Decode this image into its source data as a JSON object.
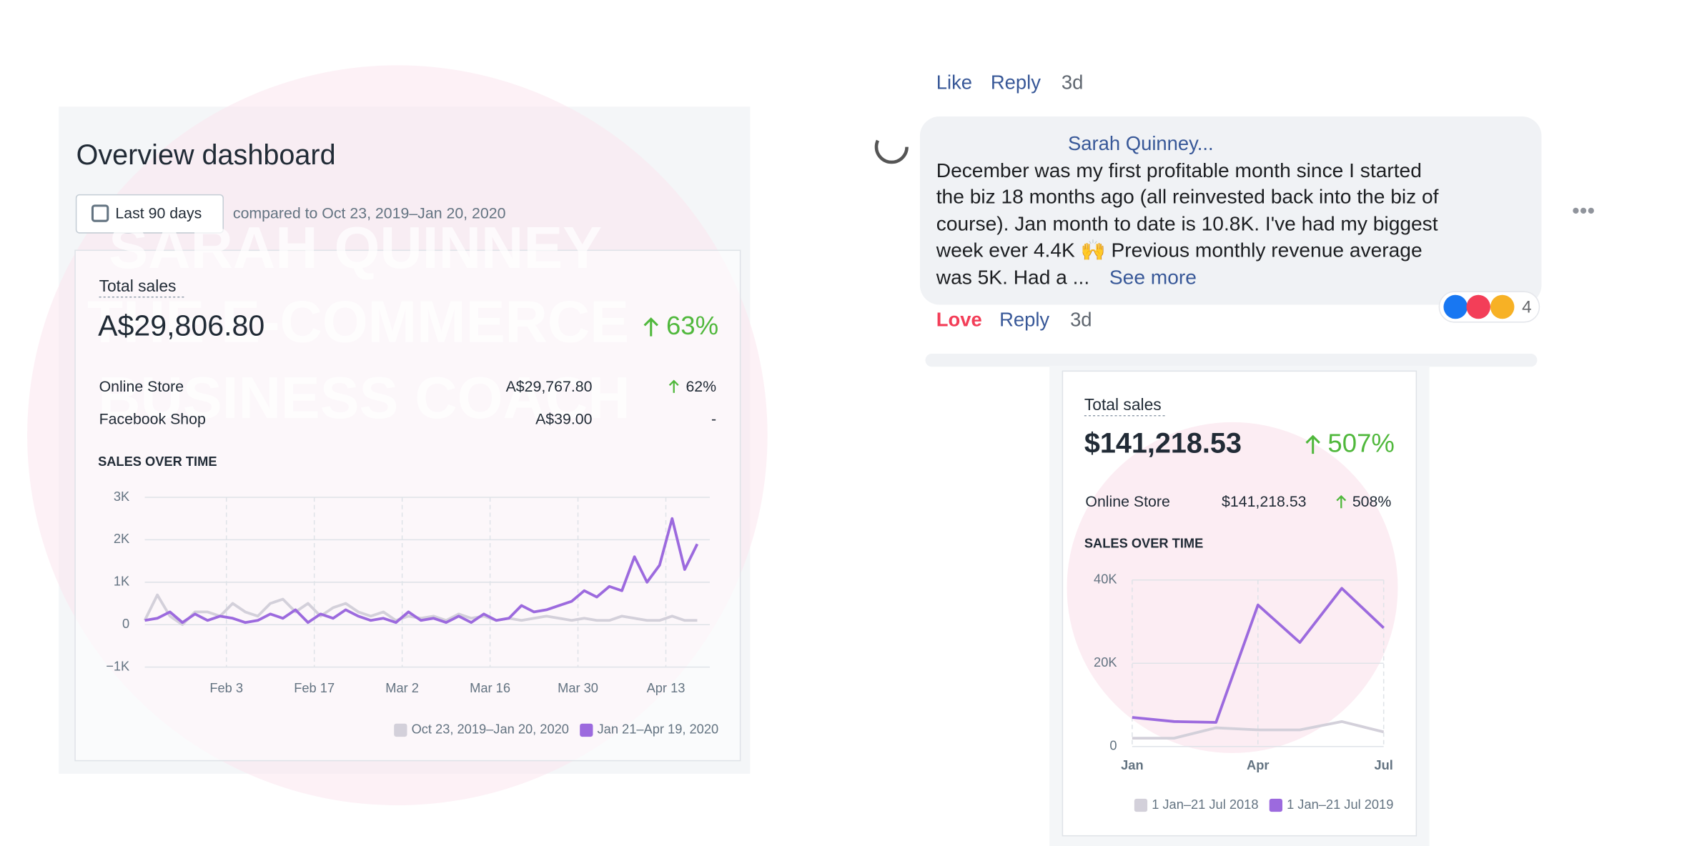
{
  "watermark": {
    "lines": [
      "SARAH QUINNEY",
      "THE E-COMMERCE",
      "BUSINESS COACH"
    ]
  },
  "dashboard": {
    "title": "Overview dashboard",
    "date_button": "Last 90 days",
    "comparison": "compared to Oct 23, 2019–Jan 20, 2020",
    "card_title": "Total sales",
    "total": "A$29,806.80",
    "change": "63%",
    "rows": [
      {
        "name": "Online Store",
        "value": "A$29,767.80",
        "change": "62%"
      },
      {
        "name": "Facebook Shop",
        "value": "A$39.00",
        "change": "-"
      }
    ],
    "section": "SALES OVER TIME"
  },
  "comment": {
    "top_actions": [
      "Like",
      "Reply",
      "3d"
    ],
    "author": "Sarah Quinney...",
    "lines": [
      "December was my first profitable month since I started",
      "the biz 18 months ago (all reinvested back into the biz of",
      "course). Jan month to date is 10.8K. I've had my biggest",
      "week ever 4.4K 🙌 Previous monthly revenue average",
      "was 5K. Had a ..."
    ],
    "see_more": "See more",
    "reactions": "4",
    "actions": [
      "Love",
      "Reply",
      "3d"
    ]
  },
  "dashboard2": {
    "card_title": "Total sales",
    "total": "$141,218.53",
    "change": "507%",
    "rows": [
      {
        "name": "Online Store",
        "value": "$141,218.53",
        "change": "508%"
      }
    ],
    "section": "SALES OVER TIME"
  },
  "chart_data": [
    {
      "type": "line",
      "x": [
        0,
        2,
        4,
        6,
        8,
        10,
        12,
        14,
        16,
        18,
        20,
        22,
        24,
        26,
        28,
        30,
        32,
        34,
        36,
        38,
        40,
        42,
        44,
        46,
        48,
        50,
        52,
        54,
        56,
        58,
        60,
        62,
        64,
        66,
        68,
        70,
        72,
        74,
        76,
        78,
        80,
        82,
        84,
        86,
        88
      ],
      "xlim": [
        0,
        90
      ],
      "xticks": [
        {
          "value": 13,
          "label": "Feb 3"
        },
        {
          "value": 27,
          "label": "Feb 17"
        },
        {
          "value": 41,
          "label": "Mar 2"
        },
        {
          "value": 55,
          "label": "Mar 16"
        },
        {
          "value": 69,
          "label": "Mar 30"
        },
        {
          "value": 83,
          "label": "Apr 13"
        }
      ],
      "ylim": [
        -1000,
        3000
      ],
      "yticks": [
        {
          "value": 3000,
          "label": "3K"
        },
        {
          "value": 2000,
          "label": "2K"
        },
        {
          "value": 1000,
          "label": "1K"
        },
        0,
        {
          "value": -1000,
          "label": "−1K"
        }
      ],
      "grid": true,
      "series": [
        {
          "name": "Oct 23, 2019–Jan 20, 2020",
          "color": "#d3d0da",
          "values": [
            100,
            700,
            200,
            0,
            300,
            300,
            200,
            500,
            300,
            200,
            500,
            600,
            300,
            500,
            200,
            400,
            500,
            300,
            200,
            300,
            100,
            200,
            150,
            200,
            100,
            250,
            150,
            200,
            100,
            150,
            100,
            150,
            200,
            150,
            100,
            150,
            100,
            100,
            200,
            150,
            100,
            100,
            200,
            100,
            100
          ]
        },
        {
          "name": "Jan 21–Apr 19, 2020",
          "color": "#9c6ade",
          "values": [
            100,
            150,
            300,
            50,
            250,
            100,
            200,
            150,
            50,
            100,
            250,
            150,
            350,
            50,
            250,
            150,
            350,
            200,
            100,
            150,
            50,
            300,
            100,
            150,
            50,
            200,
            50,
            250,
            100,
            150,
            450,
            300,
            350,
            450,
            550,
            800,
            650,
            900,
            800,
            1600,
            1000,
            1400,
            2500,
            1300,
            1900
          ]
        }
      ]
    },
    {
      "type": "line",
      "categories": [
        "Jan",
        null,
        null,
        "Apr",
        null,
        null,
        "Jul"
      ],
      "ylim": [
        0,
        40000
      ],
      "yticks": [
        {
          "value": 40000,
          "label": "40K"
        },
        {
          "value": 20000,
          "label": "20K"
        },
        0
      ],
      "grid": true,
      "series": [
        {
          "name": "1 Jan–21 Jul 2018",
          "color": "#d3d0da",
          "values": [
            2000,
            2000,
            4500,
            4000,
            4000,
            6000,
            3500
          ]
        },
        {
          "name": "1 Jan–21 Jul 2019",
          "color": "#9c6ade",
          "values": [
            7000,
            6000,
            5800,
            34000,
            25000,
            38000,
            28500
          ]
        }
      ]
    }
  ]
}
